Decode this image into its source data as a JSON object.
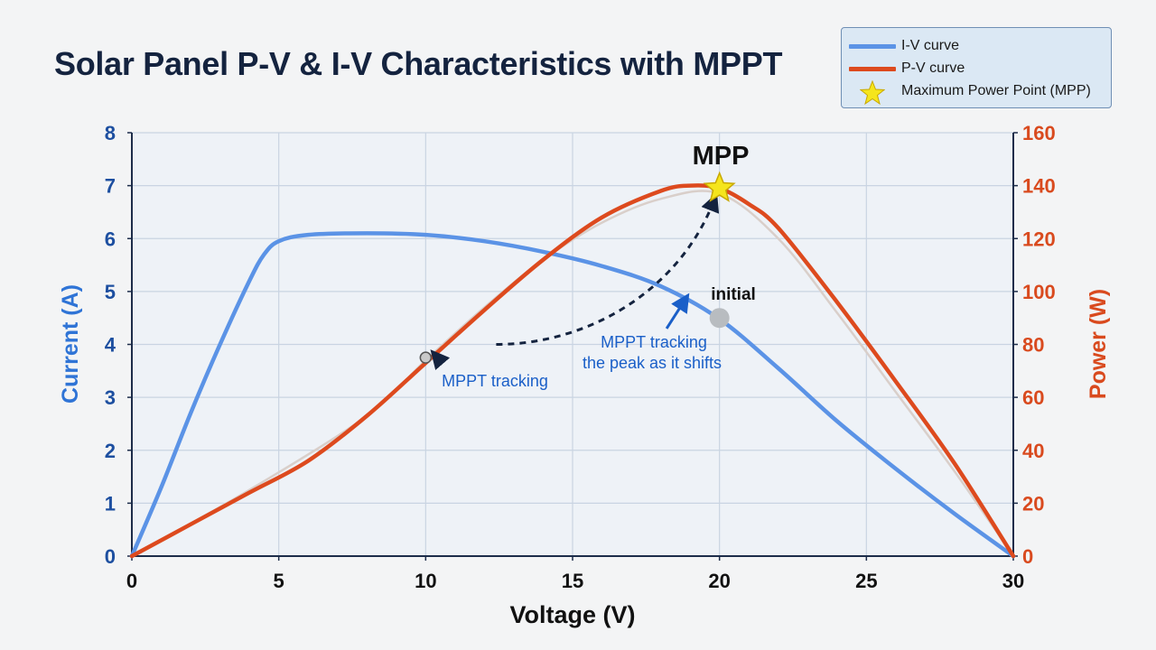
{
  "header": {
    "title": "Solar Panel P-V & I-V Characteristics with MPPT"
  },
  "legend": {
    "items": [
      {
        "label": "I-V curve",
        "color": "#5b93e6",
        "kind": "line"
      },
      {
        "label": "P-V curve",
        "color": "#dd4a1e",
        "kind": "line"
      },
      {
        "label": "Maximum Power Point (MPP)",
        "color": "#f5e51c",
        "kind": "star"
      }
    ]
  },
  "chart_data": {
    "type": "line",
    "title": "Solar Panel P-V & I-V Characteristics with MPPT",
    "xlabel": "Voltage (V)",
    "ylabel_left": "Current (A)",
    "ylabel_right": "Power (W)",
    "xlim": [
      0,
      30
    ],
    "ylim_left": [
      0,
      8
    ],
    "ylim_right": [
      0,
      160
    ],
    "xticks": [
      "0",
      "5",
      "10",
      "15",
      "20",
      "25",
      "30"
    ],
    "yticks_left": [
      "0",
      "1",
      "2",
      "3",
      "4",
      "5",
      "6",
      "7",
      "8"
    ],
    "yticks_right": [
      "0",
      "20",
      "40",
      "60",
      "80",
      "100",
      "120",
      "140",
      "160"
    ],
    "grid": true,
    "legend_position": "top-right",
    "series": [
      {
        "name": "I-V curve",
        "axis": "left",
        "color": "#5b93e6",
        "x": [
          0,
          1,
          2,
          3,
          4,
          4.5,
          5,
          6,
          8,
          10,
          12,
          14,
          16,
          18,
          20,
          22,
          24,
          26,
          28,
          30
        ],
        "y": [
          0,
          1.3,
          2.7,
          4.0,
          5.2,
          5.7,
          5.95,
          6.07,
          6.1,
          6.07,
          5.95,
          5.75,
          5.48,
          5.1,
          4.48,
          3.55,
          2.55,
          1.65,
          0.8,
          0
        ]
      },
      {
        "name": "P-V curve",
        "axis": "right",
        "color": "#dd4a1e",
        "x": [
          0,
          2,
          4,
          6,
          8,
          10,
          12,
          14,
          16,
          18,
          19,
          20,
          21,
          22,
          24,
          26,
          28,
          30
        ],
        "y": [
          0,
          12,
          24,
          36,
          53,
          73,
          93,
          112,
          128,
          138,
          140,
          139,
          133,
          124,
          96,
          66,
          35,
          0
        ]
      }
    ],
    "shifted_curve": {
      "axis": "right",
      "color": "#d9cfca",
      "x": [
        0,
        4,
        8,
        10,
        12,
        14,
        16,
        18,
        20,
        22,
        24,
        26,
        28,
        30
      ],
      "y": [
        0,
        25,
        53,
        74,
        94,
        112,
        126,
        135,
        137,
        120,
        92,
        62,
        32,
        0
      ]
    },
    "mpp": {
      "x": 20,
      "y_right": 139,
      "label": "MPP"
    },
    "points": [
      {
        "x": 10,
        "y_right": 75,
        "color": "#c9c9c9",
        "kind": "small"
      },
      {
        "x": 20,
        "y_left": 4.5,
        "color": "#b8bcc0",
        "kind": "large"
      }
    ],
    "annotations": {
      "initial": "initial",
      "tracking_left": "MPPT tracking",
      "tracking_mid_line1": "MPPT tracking",
      "tracking_mid_line2": "the peak as it shifts"
    }
  }
}
